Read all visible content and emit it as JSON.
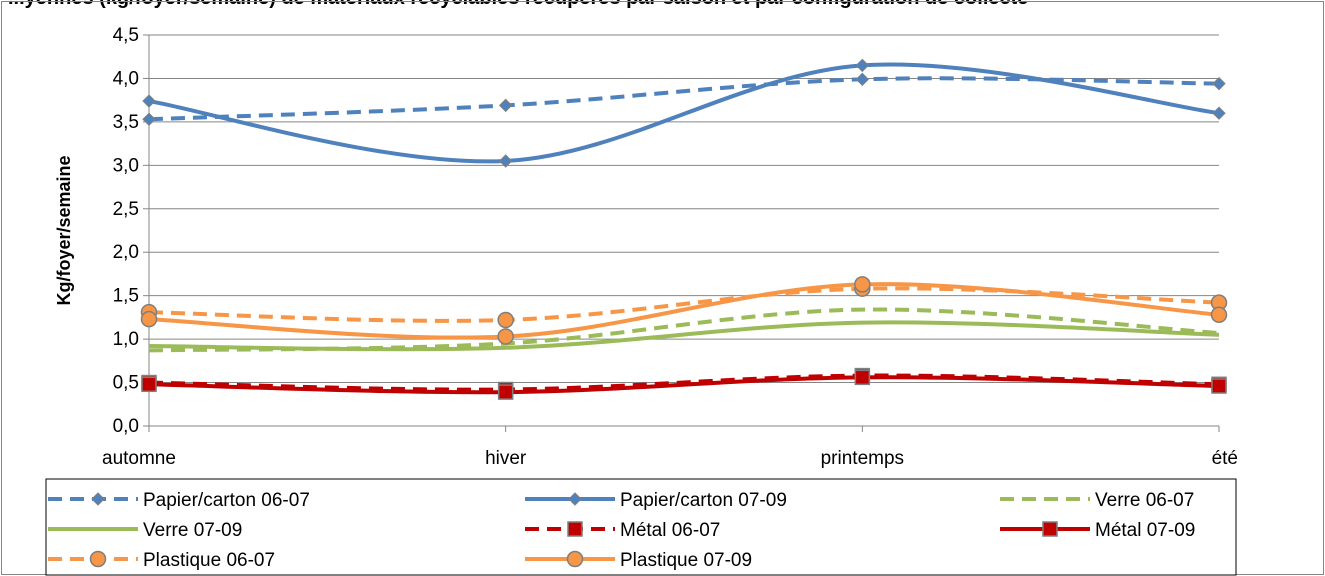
{
  "chart_title": "...yennes (kg/foyer/semaine) de matériaux recyclables récupérés par saison et par configuration de collecte",
  "chart_data": {
    "type": "line",
    "title": "",
    "xlabel": "",
    "ylabel": "Kg/foyer/semaine",
    "categories": [
      "automne",
      "hiver",
      "printemps",
      "été"
    ],
    "ylim": [
      0,
      4.5
    ],
    "yticks": [
      "0,0",
      "0,5",
      "1,0",
      "1,5",
      "2,0",
      "2,5",
      "3,0",
      "3,5",
      "4,0",
      "4,5"
    ],
    "grid": true,
    "smooth": true,
    "legend_position": "bottom",
    "series": [
      {
        "name": "Papier/carton 06-07",
        "values": [
          3.53,
          3.69,
          3.99,
          3.94
        ],
        "color": "#4F81BD",
        "dash": true,
        "marker": "diamond"
      },
      {
        "name": "Papier/carton 07-09",
        "values": [
          3.74,
          3.05,
          4.15,
          3.6
        ],
        "color": "#4F81BD",
        "dash": false,
        "marker": "diamond"
      },
      {
        "name": "Verre 06-07",
        "values": [
          0.87,
          0.95,
          1.34,
          1.07
        ],
        "color": "#9BBB59",
        "dash": true,
        "marker": "none"
      },
      {
        "name": "Verre 07-09",
        "values": [
          0.92,
          0.9,
          1.19,
          1.05
        ],
        "color": "#9BBB59",
        "dash": false,
        "marker": "none"
      },
      {
        "name": "Métal 06-07",
        "values": [
          0.5,
          0.42,
          0.58,
          0.48
        ],
        "color": "#C00000",
        "dash": true,
        "marker": "square"
      },
      {
        "name": "Métal 07-09",
        "values": [
          0.48,
          0.39,
          0.56,
          0.46
        ],
        "color": "#C00000",
        "dash": false,
        "marker": "square"
      },
      {
        "name": "Plastique 06-07",
        "values": [
          1.31,
          1.22,
          1.58,
          1.42
        ],
        "color": "#F79646",
        "dash": true,
        "marker": "circle"
      },
      {
        "name": "Plastique 07-09",
        "values": [
          1.23,
          1.03,
          1.63,
          1.28
        ],
        "color": "#F79646",
        "dash": false,
        "marker": "circle"
      }
    ]
  }
}
